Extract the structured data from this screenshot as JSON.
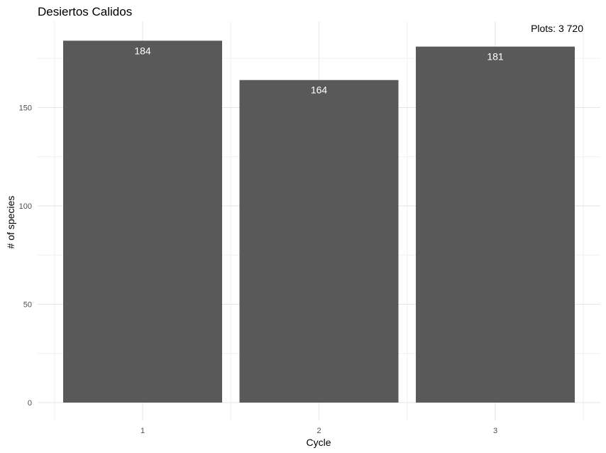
{
  "chart_data": {
    "type": "bar",
    "title": "Desiertos Calidos",
    "annotation": "Plots: 3 720",
    "categories": [
      "1",
      "2",
      "3"
    ],
    "values": [
      184,
      164,
      181
    ],
    "data_labels": [
      "184",
      "164",
      "181"
    ],
    "xlabel": "Cycle",
    "ylabel": "# of species",
    "y_ticks": [
      0,
      50,
      100,
      150
    ],
    "y_tick_labels": [
      "0",
      "50",
      "100",
      "150"
    ],
    "ylim": [
      0,
      194
    ],
    "grid": true,
    "bar_color": "#595959",
    "label_color": "#ffffff"
  }
}
